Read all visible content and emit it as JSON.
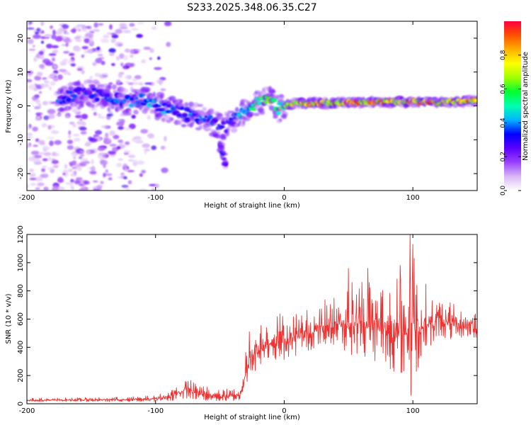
{
  "title": "S233.2025.348.06.35.C27",
  "chart_data": [
    {
      "type": "heatmap",
      "title": "S233.2025.348.06.35.C27",
      "xlabel": "Height of straight line (km)",
      "ylabel": "Frequency (Hz)",
      "xlim": [
        -200,
        150
      ],
      "ylim": [
        -25,
        25
      ],
      "x_ticks": [
        -200,
        -100,
        0,
        100
      ],
      "x_tick_labels": [
        "-200",
        "-100",
        "0",
        "100"
      ],
      "y_ticks": [
        -20,
        -10,
        0,
        10,
        20
      ],
      "y_tick_labels": [
        "-20",
        "-10",
        "0",
        "10",
        "20"
      ],
      "ridge": {
        "x": [
          -175,
          -160,
          -150,
          -140,
          -130,
          -120,
          -110,
          -100,
          -90,
          -80,
          -70,
          -60,
          -50,
          -45,
          -40,
          -35,
          -30,
          -25,
          -20,
          -15,
          -10,
          -5,
          0,
          10,
          30,
          60,
          90,
          120,
          150
        ],
        "freq": [
          2,
          3.5,
          3.5,
          3,
          2,
          1,
          2,
          0,
          -1,
          -2,
          -3,
          -4,
          -6,
          -6,
          -4,
          -3,
          -1,
          0,
          1,
          2,
          2,
          -1,
          0,
          0.8,
          0.8,
          1,
          1.2,
          1,
          1.5
        ],
        "amplitude": [
          0.35,
          0.3,
          0.3,
          0.3,
          0.35,
          0.35,
          0.4,
          0.4,
          0.35,
          0.35,
          0.4,
          0.35,
          0.3,
          0.3,
          0.3,
          0.4,
          0.45,
          0.5,
          0.55,
          0.6,
          0.6,
          0.5,
          0.6,
          0.75,
          0.8,
          0.85,
          0.85,
          0.8,
          0.75
        ]
      },
      "branch": {
        "x": [
          -50,
          -47,
          -45
        ],
        "freq": [
          -12,
          -15,
          -18
        ],
        "amplitude": [
          0.3,
          0.3,
          0.25
        ]
      },
      "noise_region_xlim": [
        -200,
        -100
      ],
      "colorbar": {
        "label": "Normalized spectral amplitude",
        "range": [
          0,
          1
        ],
        "ticks": [
          0.0,
          0.2,
          0.4,
          0.6,
          0.8
        ],
        "tick_labels": [
          "0.0",
          "0.2",
          "0.4",
          "0.6",
          "0.8"
        ],
        "colors": [
          "#ffffff",
          "#d9b8f5",
          "#9a40ff",
          "#5a00ff",
          "#0000ff",
          "#00b4ff",
          "#00ffb0",
          "#00ff30",
          "#a0ff00",
          "#ffff00",
          "#ffb000",
          "#ff5000",
          "#ff0040"
        ]
      }
    },
    {
      "type": "line",
      "xlabel": "Height of straight line (km)",
      "ylabel": "SNR (10 * v/v)",
      "xlim": [
        -200,
        150
      ],
      "ylim": [
        0,
        1200
      ],
      "x_ticks": [
        -200,
        -100,
        0,
        100
      ],
      "x_tick_labels": [
        "-200",
        "-100",
        "0",
        "100"
      ],
      "y_ticks": [
        0,
        200,
        400,
        600,
        800,
        1000,
        1200
      ],
      "y_tick_labels": [
        "0",
        "200",
        "400",
        "600",
        "800",
        "1000",
        "1200"
      ],
      "series": [
        {
          "name": "SNR",
          "color": "#ee3333",
          "envelope_x": [
            -200,
            -150,
            -120,
            -100,
            -90,
            -80,
            -75,
            -70,
            -60,
            -50,
            -35,
            -30,
            -28,
            -25,
            -20,
            -10,
            0,
            20,
            40,
            50,
            60,
            70,
            80,
            90,
            95,
            100,
            105,
            110,
            115,
            120,
            130,
            140,
            145,
            150
          ],
          "envelope_min": [
            15,
            15,
            15,
            15,
            20,
            30,
            40,
            30,
            20,
            15,
            20,
            80,
            150,
            200,
            250,
            300,
            300,
            380,
            420,
            350,
            330,
            300,
            250,
            200,
            200,
            150,
            250,
            380,
            400,
            480,
            450,
            470,
            480,
            420
          ],
          "envelope_max": [
            40,
            45,
            50,
            60,
            90,
            170,
            190,
            150,
            130,
            100,
            120,
            380,
            460,
            500,
            600,
            660,
            660,
            680,
            780,
            900,
            940,
            930,
            920,
            900,
            1000,
            1200,
            950,
            860,
            780,
            760,
            720,
            650,
            700,
            620
          ],
          "spikes": [
            {
              "x": -27,
              "y": 510
            },
            {
              "x": 50,
              "y": 960
            },
            {
              "x": 65,
              "y": 960
            },
            {
              "x": 90,
              "y": 980
            },
            {
              "x": 98,
              "y": 1200
            },
            {
              "x": 98.5,
              "y": 60
            },
            {
              "x": 100,
              "y": 1130
            },
            {
              "x": 103,
              "y": 840
            }
          ]
        }
      ]
    }
  ]
}
